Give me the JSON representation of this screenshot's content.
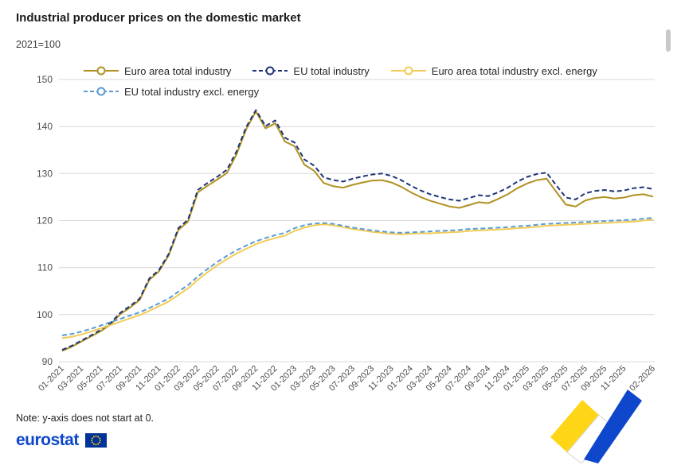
{
  "page": {
    "title": "Industrial producer prices on the domestic market",
    "subtitle": "2021=100",
    "note": "Note: y-axis does not start at 0.",
    "logo_text": "eurostat"
  },
  "brand": {
    "logo_blue": "#0E47CB",
    "flag_blue": "#003399",
    "star_yellow": "#FFCC00",
    "ribbon_yellow": "#FFD617",
    "ribbon_blue": "#0E47CB"
  },
  "chart_data": {
    "type": "line",
    "title": "Industrial producer prices on the domestic market",
    "unit": "2021=100",
    "xlabel": "",
    "ylabel": "",
    "ylim": [
      90,
      150
    ],
    "yticks": [
      90,
      100,
      110,
      120,
      130,
      140,
      150
    ],
    "grid": "horizontal",
    "legend_position": "top",
    "x": [
      "01-2021",
      "02-2021",
      "03-2021",
      "04-2021",
      "05-2021",
      "06-2021",
      "07-2021",
      "08-2021",
      "09-2021",
      "10-2021",
      "11-2021",
      "12-2021",
      "01-2022",
      "02-2022",
      "03-2022",
      "04-2022",
      "05-2022",
      "06-2022",
      "07-2022",
      "08-2022",
      "09-2022",
      "10-2022",
      "11-2022",
      "12-2022",
      "01-2023",
      "02-2023",
      "03-2023",
      "04-2023",
      "05-2023",
      "06-2023",
      "07-2023",
      "08-2023",
      "09-2023",
      "10-2023",
      "11-2023",
      "12-2023",
      "01-2024",
      "02-2024",
      "03-2024",
      "04-2024",
      "05-2024",
      "06-2024",
      "07-2024",
      "08-2024",
      "09-2024",
      "10-2024",
      "11-2024",
      "12-2024",
      "01-2025",
      "02-2025",
      "03-2025",
      "04-2025",
      "05-2025",
      "06-2025",
      "07-2025",
      "08-2025",
      "09-2025",
      "10-2025",
      "11-2025",
      "12-2025",
      "01-2026",
      "02-2026"
    ],
    "x_tick_labels": [
      "01-2021",
      "03-2021",
      "05-2021",
      "07-2021",
      "09-2021",
      "11-2021",
      "01-2022",
      "03-2022",
      "05-2022",
      "07-2022",
      "09-2022",
      "11-2022",
      "01-2023",
      "03-2023",
      "05-2023",
      "07-2023",
      "09-2023",
      "11-2023",
      "01-2024",
      "03-2024",
      "05-2024",
      "07-2024",
      "09-2024",
      "11-2024",
      "01-2025",
      "03-2025",
      "05-2025",
      "07-2025",
      "09-2025",
      "11-2025",
      "02-2026"
    ],
    "series": [
      {
        "name": "Euro area total industry",
        "color": "#B09120",
        "dash": "solid",
        "values": [
          92.3,
          93.2,
          94.3,
          95.4,
          96.5,
          97.9,
          100.1,
          101.5,
          103.1,
          107.4,
          109.2,
          112.6,
          118.0,
          119.8,
          126.0,
          127.4,
          128.7,
          130.1,
          134.1,
          139.4,
          143.2,
          139.6,
          140.7,
          136.8,
          135.8,
          131.9,
          130.6,
          128.0,
          127.3,
          127.0,
          127.6,
          128.1,
          128.5,
          128.6,
          128.1,
          127.2,
          126.0,
          125.0,
          124.2,
          123.6,
          123.0,
          122.7,
          123.3,
          123.9,
          123.7,
          124.6,
          125.6,
          126.9,
          127.9,
          128.6,
          128.9,
          126.1,
          123.4,
          123.0,
          124.3,
          124.8,
          125.0,
          124.7,
          124.9,
          125.4,
          125.6,
          125.1
        ]
      },
      {
        "name": "EU total industry",
        "color": "#1F3478",
        "dash": "dashed",
        "values": [
          92.5,
          93.4,
          94.5,
          95.6,
          96.8,
          98.2,
          100.4,
          101.8,
          103.4,
          107.7,
          109.5,
          112.9,
          118.4,
          120.2,
          126.5,
          128.0,
          129.3,
          130.8,
          134.7,
          139.9,
          143.5,
          140.1,
          141.3,
          137.6,
          136.6,
          133.0,
          131.7,
          129.2,
          128.6,
          128.3,
          128.9,
          129.4,
          129.8,
          130.0,
          129.5,
          128.6,
          127.4,
          126.4,
          125.6,
          125.0,
          124.5,
          124.2,
          124.8,
          125.4,
          125.2,
          126.0,
          127.0,
          128.3,
          129.3,
          129.9,
          130.2,
          127.5,
          124.9,
          124.5,
          125.8,
          126.3,
          126.5,
          126.2,
          126.4,
          126.9,
          127.1,
          126.7
        ]
      },
      {
        "name": "Euro area total industry excl. energy",
        "color": "#F2CC55",
        "dash": "solid",
        "values": [
          95.0,
          95.3,
          95.8,
          96.4,
          97.1,
          97.8,
          98.5,
          99.2,
          99.9,
          100.8,
          101.8,
          102.8,
          104.2,
          105.6,
          107.4,
          109.0,
          110.5,
          111.8,
          113.0,
          114.0,
          115.0,
          115.7,
          116.3,
          116.8,
          117.8,
          118.5,
          119.0,
          119.2,
          119.0,
          118.6,
          118.2,
          117.9,
          117.6,
          117.4,
          117.2,
          117.1,
          117.2,
          117.3,
          117.3,
          117.4,
          117.5,
          117.6,
          117.8,
          117.9,
          118.0,
          118.1,
          118.2,
          118.4,
          118.5,
          118.7,
          118.9,
          119.0,
          119.1,
          119.2,
          119.3,
          119.4,
          119.5,
          119.6,
          119.7,
          119.8,
          120.0,
          120.2
        ]
      },
      {
        "name": "EU total industry excl. energy",
        "color": "#5B9BD5",
        "dash": "dashed",
        "values": [
          95.6,
          95.9,
          96.4,
          97.0,
          97.7,
          98.4,
          99.1,
          99.8,
          100.5,
          101.4,
          102.4,
          103.4,
          104.9,
          106.3,
          108.1,
          109.7,
          111.2,
          112.5,
          113.7,
          114.7,
          115.6,
          116.3,
          116.9,
          117.4,
          118.4,
          119.0,
          119.4,
          119.5,
          119.3,
          118.9,
          118.5,
          118.2,
          117.9,
          117.7,
          117.5,
          117.4,
          117.5,
          117.6,
          117.7,
          117.8,
          117.9,
          118.0,
          118.2,
          118.3,
          118.4,
          118.5,
          118.6,
          118.8,
          118.9,
          119.1,
          119.3,
          119.4,
          119.5,
          119.6,
          119.7,
          119.8,
          119.9,
          120.0,
          120.1,
          120.2,
          120.4,
          120.6
        ]
      }
    ]
  }
}
